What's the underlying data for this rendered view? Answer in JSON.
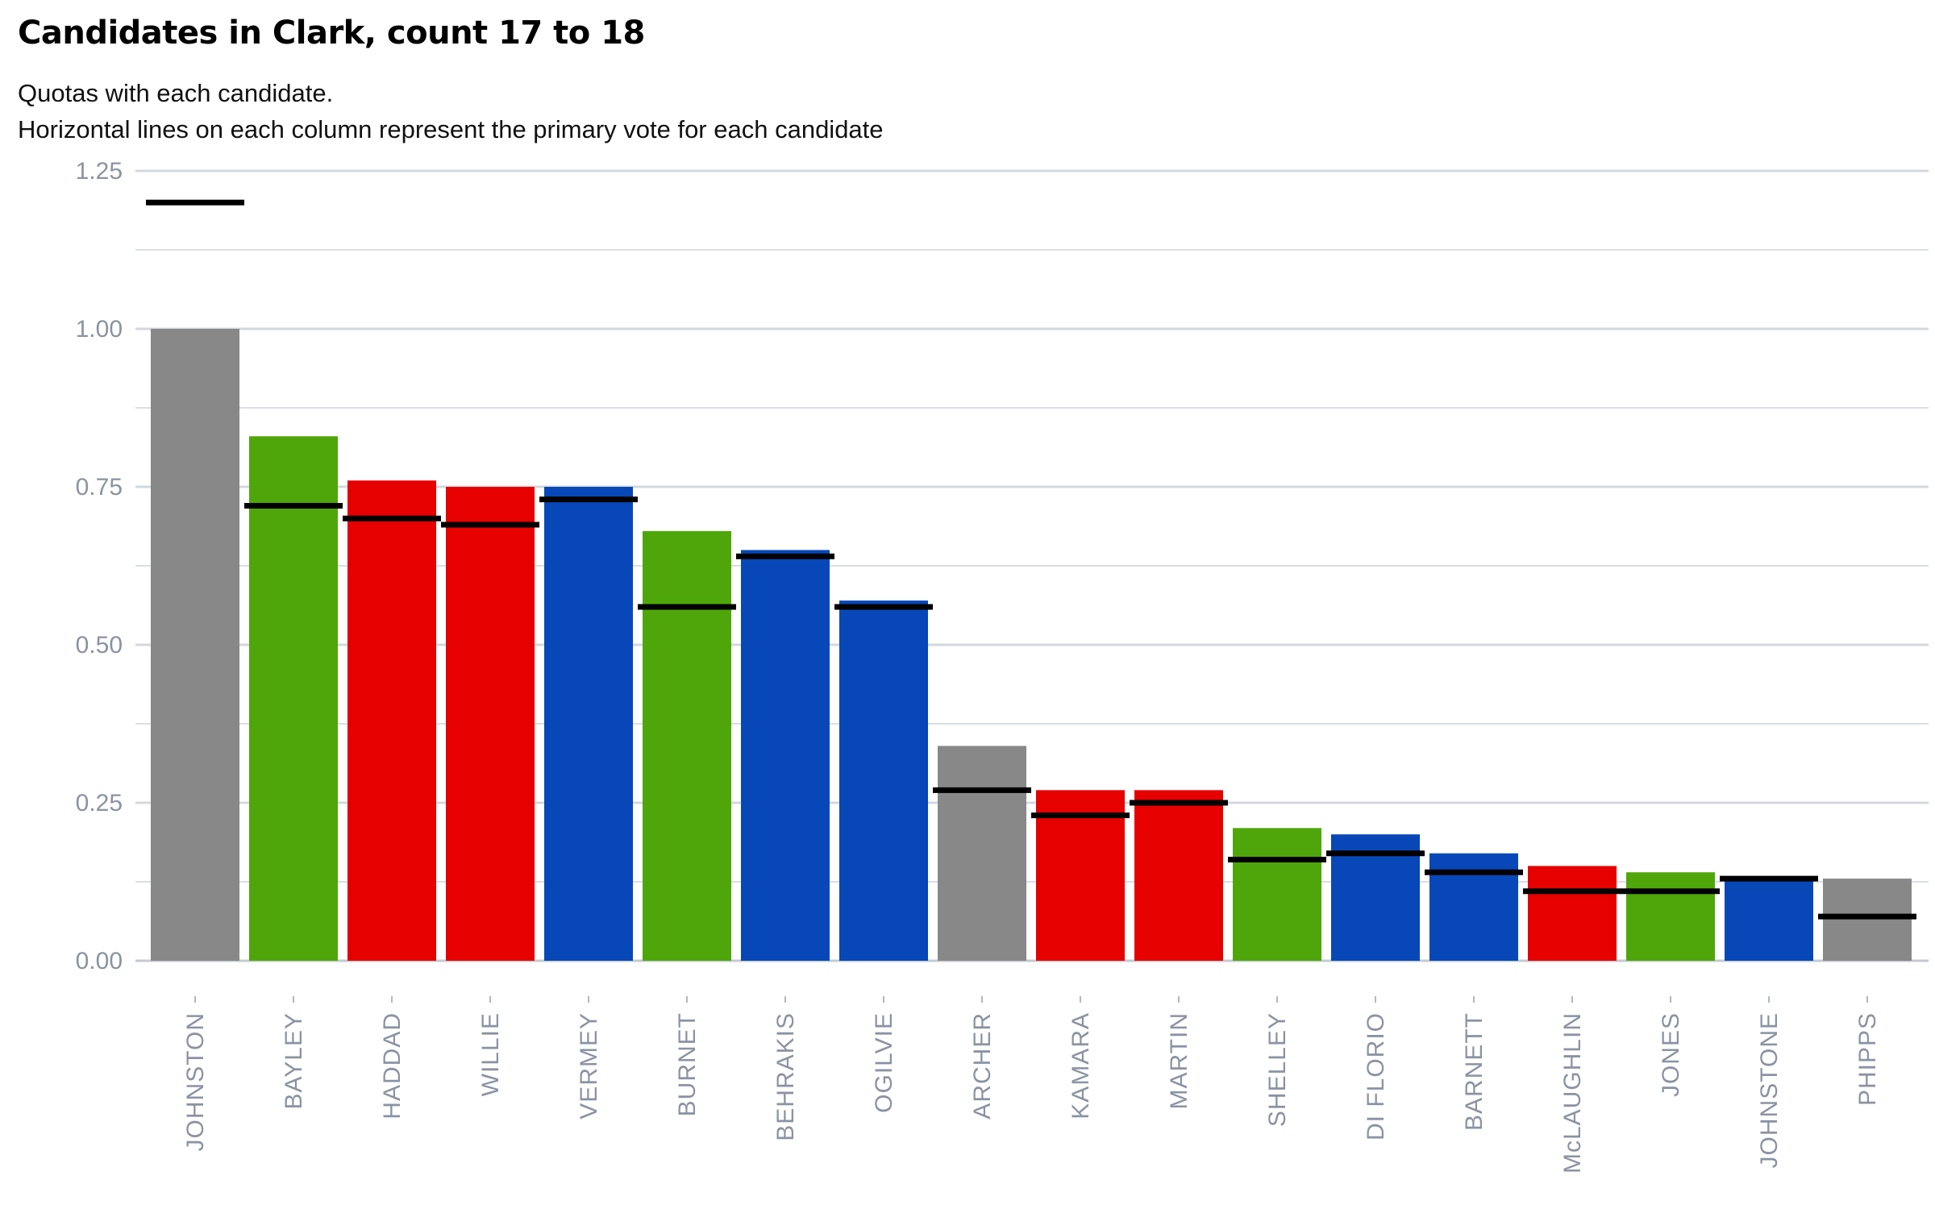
{
  "chart_data": {
    "type": "bar",
    "title": "Candidates in Clark, count 17 to 18",
    "subtitle_lines": [
      "Quotas with each candidate.",
      "Horizontal lines on each column represent the primary vote for each candidate"
    ],
    "xlabel": "",
    "ylabel": "",
    "ylim": [
      0,
      1.25
    ],
    "yticks": [
      "0.00",
      "0.25",
      "0.50",
      "0.75",
      "1.00",
      "1.25"
    ],
    "ytick_values": [
      0,
      0.25,
      0.5,
      0.75,
      1.0,
      1.25
    ],
    "minor_gridlines": [
      0.125,
      0.375,
      0.625,
      0.875,
      1.125
    ],
    "categories": [
      "JOHNSTON",
      "BAYLEY",
      "HADDAD",
      "WILLIE",
      "VERMEY",
      "BURNET",
      "BEHRAKIS",
      "OGILVIE",
      "ARCHER",
      "KAMARA",
      "MARTIN",
      "SHELLEY",
      "DI FLORIO",
      "BARNETT",
      "McLAUGHLIN",
      "JONES",
      "JOHNSTONE",
      "PHIPPS"
    ],
    "values": [
      1.0,
      0.83,
      0.76,
      0.75,
      0.75,
      0.68,
      0.65,
      0.57,
      0.34,
      0.27,
      0.27,
      0.21,
      0.2,
      0.17,
      0.15,
      0.14,
      0.13,
      0.13
    ],
    "primary_vote": [
      1.2,
      0.72,
      0.7,
      0.69,
      0.73,
      0.56,
      0.64,
      0.56,
      0.27,
      0.23,
      0.25,
      0.16,
      0.17,
      0.14,
      0.11,
      0.11,
      0.13,
      0.07
    ],
    "bar_colors": [
      "#888888",
      "#4fa60a",
      "#e60000",
      "#e60000",
      "#0747b8",
      "#4fa60a",
      "#0747b8",
      "#0747b8",
      "#888888",
      "#e60000",
      "#e60000",
      "#4fa60a",
      "#0747b8",
      "#0747b8",
      "#e60000",
      "#4fa60a",
      "#0747b8",
      "#888888"
    ],
    "marker_color": "#000000",
    "grid": true
  }
}
